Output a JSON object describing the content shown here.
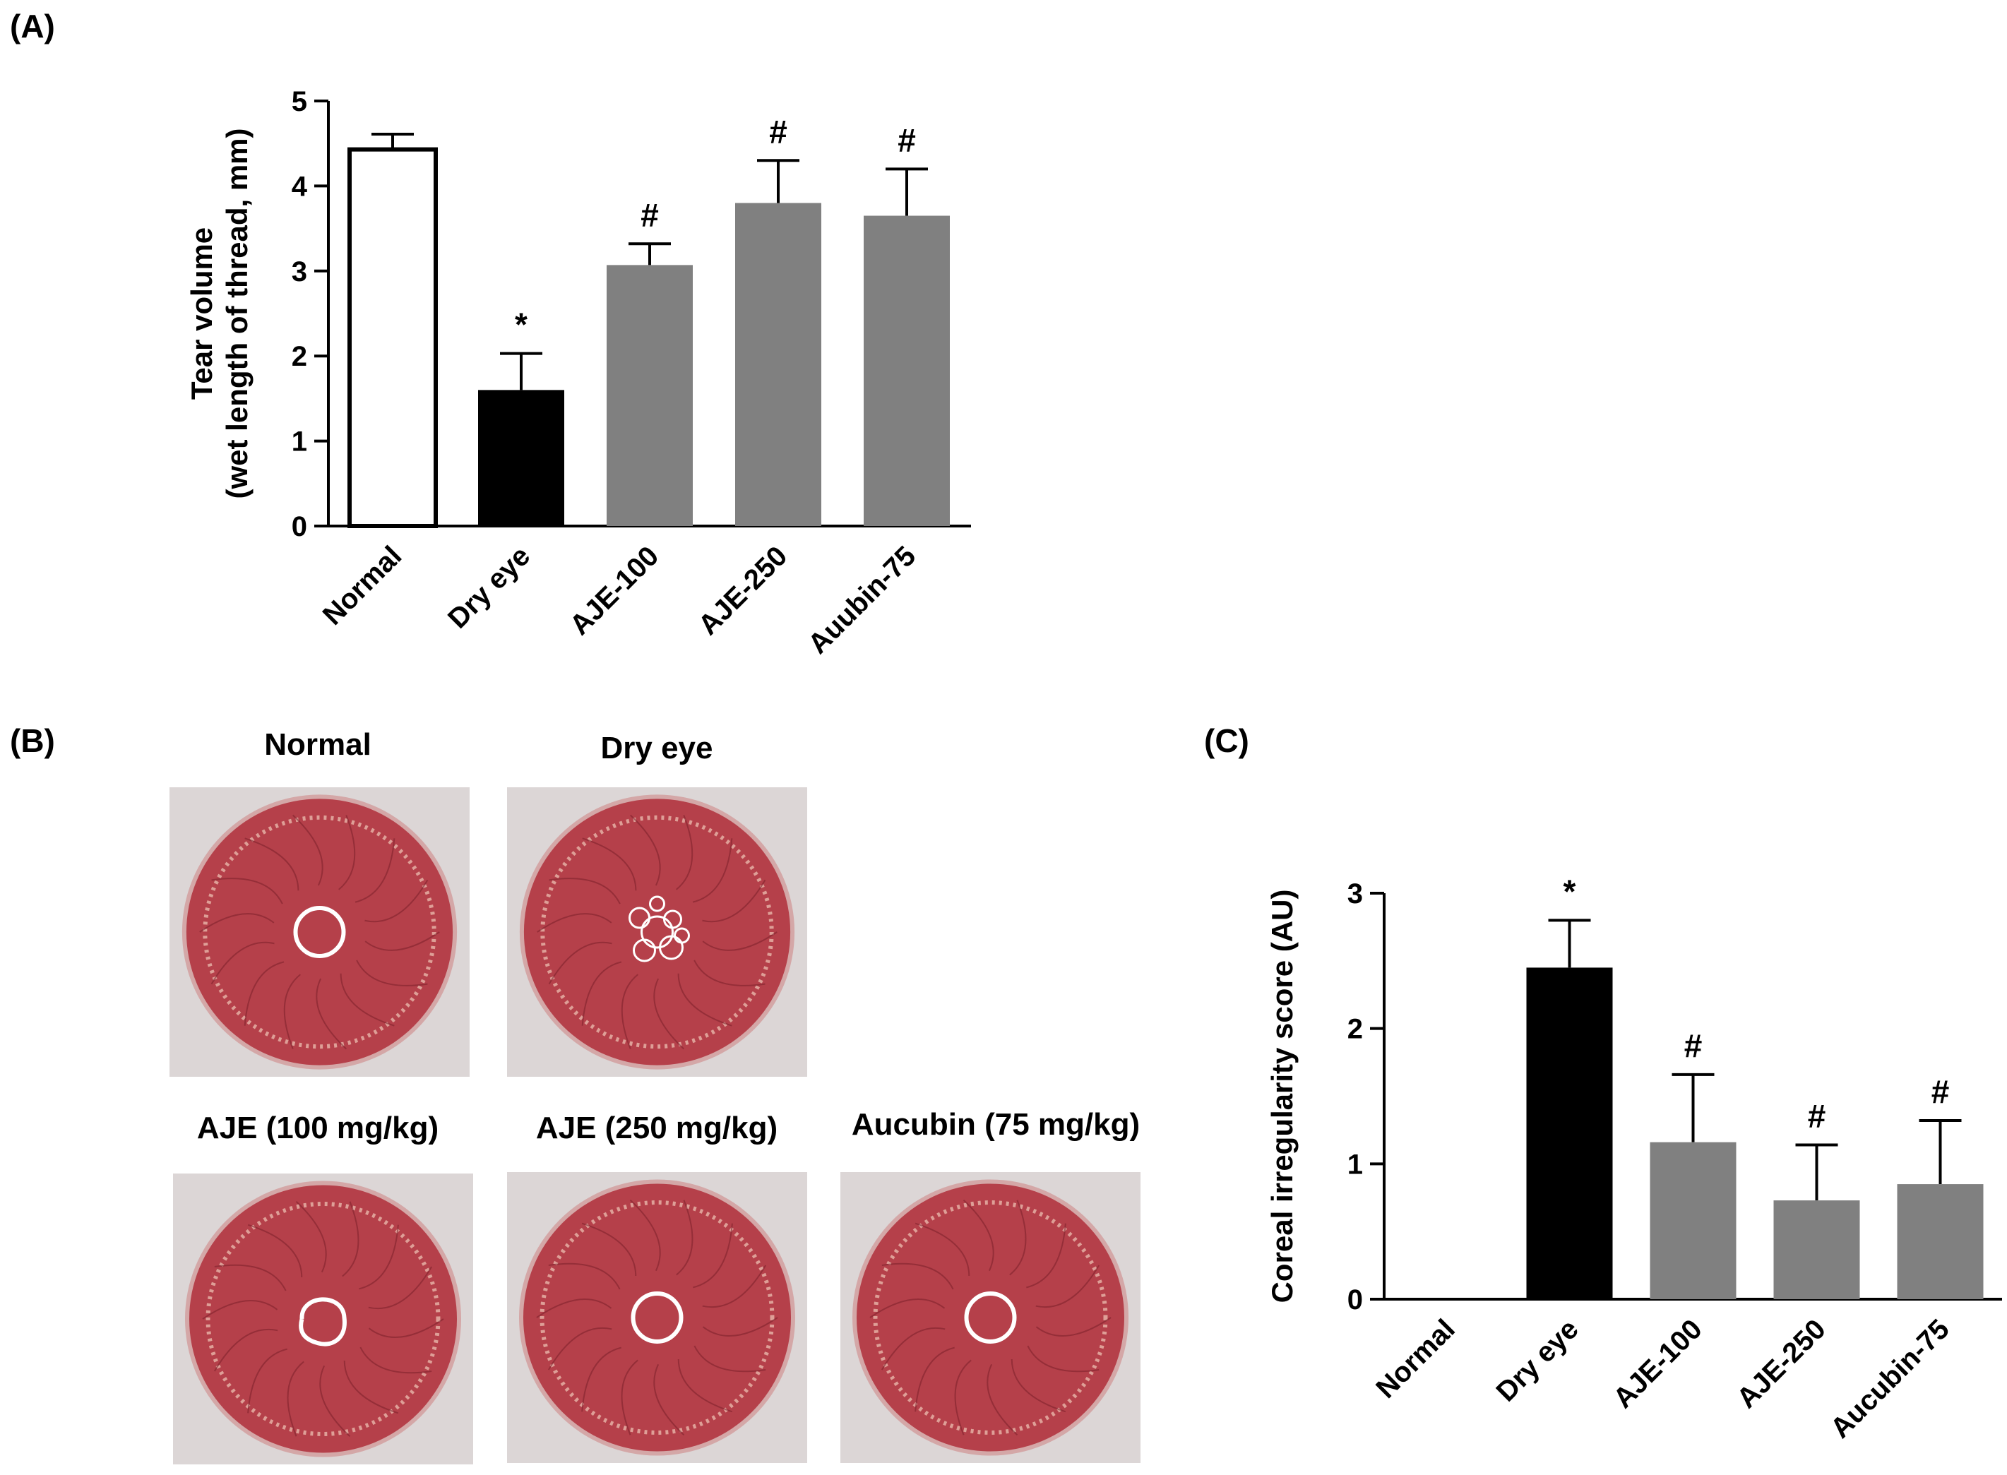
{
  "panels": {
    "a_label": "(A)",
    "b_label": "(B)",
    "c_label": "(C)"
  },
  "photos": [
    {
      "title": "Normal",
      "lesion": "ring"
    },
    {
      "title": "Dry eye",
      "lesion": "cluster"
    },
    {
      "title": "AJE (100 mg/kg)",
      "lesion": "irregular"
    },
    {
      "title": "AJE (250 mg/kg)",
      "lesion": "ring"
    },
    {
      "title": "Aucubin (75 mg/kg)",
      "lesion": "ring"
    }
  ],
  "colors": {
    "normal_bar": "#ffffff",
    "dry_eye_bar": "#000000",
    "treatment_bar": "#808080",
    "cornea": "#b5404a",
    "cornea_edge": "#d4a7a7"
  },
  "chart_data": [
    {
      "type": "bar",
      "ylabel": [
        "Tear volume",
        "(wet length of thread, mm)"
      ],
      "categories": [
        "Normal",
        "Dry eye",
        "AJE-100",
        "AJE-250",
        "Auubin-75"
      ],
      "values": [
        4.43,
        1.6,
        3.07,
        3.8,
        3.65
      ],
      "errors": [
        0.18,
        0.43,
        0.25,
        0.5,
        0.55
      ],
      "annotations": [
        "",
        "*",
        "#",
        "#",
        "#"
      ],
      "ylim": [
        0,
        5
      ],
      "yticks": [
        "0",
        "1",
        "2",
        "3",
        "4",
        "5"
      ]
    },
    {
      "type": "bar",
      "ylabel": [
        "Coreal irregularity score (AU)"
      ],
      "categories": [
        "Normal",
        "Dry eye",
        "AJE-100",
        "AJE-250",
        "Aucubin-75"
      ],
      "values": [
        0,
        2.45,
        1.16,
        0.73,
        0.85
      ],
      "errors": [
        0,
        0.35,
        0.5,
        0.41,
        0.47
      ],
      "annotations": [
        "",
        "*",
        "#",
        "#",
        "#"
      ],
      "ylim": [
        0,
        3
      ],
      "yticks": [
        "0",
        "1",
        "2",
        "3"
      ]
    }
  ]
}
